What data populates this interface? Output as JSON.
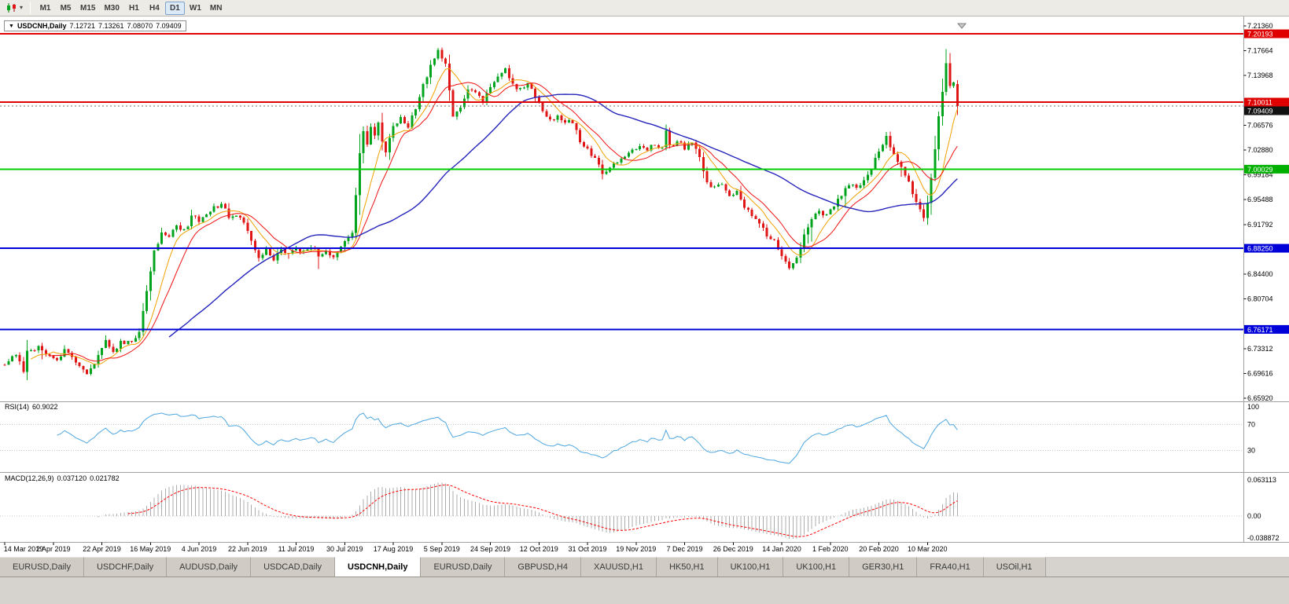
{
  "toolbar": {
    "timeframes": [
      "M1",
      "M5",
      "M15",
      "M30",
      "H1",
      "H4",
      "D1",
      "W1",
      "MN"
    ],
    "active_timeframe": "D1"
  },
  "title_box": {
    "dropdown": "▼",
    "symbol_period": "USDCNH,Daily",
    "open": "7.12721",
    "high": "7.13261",
    "low": "7.08070",
    "close": "7.09409"
  },
  "main_chart": {
    "hlines": [
      {
        "value": 7.20193,
        "color": "#DF0000",
        "width": 2
      },
      {
        "value": 7.10011,
        "color": "#DF0000",
        "width": 2
      },
      {
        "value": 7.00029,
        "color": "#00CC00",
        "width": 2
      },
      {
        "value": 6.8825,
        "color": "#0000D8",
        "width": 2
      },
      {
        "value": 6.76171,
        "color": "#0000D8",
        "width": 2
      }
    ],
    "current_price": {
      "value": 7.09409,
      "label": "7.09409"
    },
    "moving_averages": [
      {
        "period": 8,
        "color": "#F0A000",
        "width": 1
      },
      {
        "period": 13,
        "color": "#F01010",
        "width": 1
      },
      {
        "period": 45,
        "color": "#2424BC",
        "width": 1.4
      }
    ]
  },
  "price_axis": {
    "ticks": [
      {
        "value": 7.2136,
        "label": "7.21360"
      },
      {
        "value": 7.17664,
        "label": "7.17664"
      },
      {
        "value": 7.13968,
        "label": "7.13968"
      },
      {
        "value": 7.06576,
        "label": "7.06576"
      },
      {
        "value": 7.0288,
        "label": "7.02880"
      },
      {
        "value": 6.99184,
        "label": "6.99184"
      },
      {
        "value": 6.95488,
        "label": "6.95488"
      },
      {
        "value": 6.91792,
        "label": "6.91792"
      },
      {
        "value": 6.844,
        "label": "6.84400"
      },
      {
        "value": 6.80704,
        "label": "6.80704"
      },
      {
        "value": 6.73312,
        "label": "6.73312"
      },
      {
        "value": 6.69616,
        "label": "6.69616"
      },
      {
        "value": 6.6592,
        "label": "6.65920"
      }
    ],
    "badges": [
      {
        "value": 7.20193,
        "label": "7.20193",
        "bg": "#DF0000",
        "fg": "#FFFFFF"
      },
      {
        "value": 7.10011,
        "label": "7.10011",
        "bg": "#DF0000",
        "fg": "#FFFFFF"
      },
      {
        "value": 7.09409,
        "label": "7.09409",
        "bg": "#111111",
        "fg": "#FFFFFF"
      },
      {
        "value": 7.00029,
        "label": "7.00029",
        "bg": "#00B000",
        "fg": "#FFFFFF"
      },
      {
        "value": 6.8825,
        "label": "6.88250",
        "bg": "#0000D8",
        "fg": "#FFFFFF"
      },
      {
        "value": 6.76171,
        "label": "6.76171",
        "bg": "#0000D8",
        "fg": "#FFFFFF"
      }
    ]
  },
  "chart_data": {
    "type": "candlestick",
    "symbol": "USDCNH",
    "timeframe": "Daily",
    "candle_count": 256,
    "visible_price_range": [
      6.6592,
      7.2136
    ],
    "up_color": "#00A41C",
    "down_color": "#E01616",
    "last_candle_ohlc": {
      "o": 7.12721,
      "h": 7.13261,
      "l": 7.0807,
      "c": 7.09409
    },
    "close_anchors": [
      [
        0,
        6.712
      ],
      [
        3,
        6.722
      ],
      [
        5,
        6.7
      ],
      [
        6,
        6.728
      ],
      [
        9,
        6.735
      ],
      [
        12,
        6.722
      ],
      [
        14,
        6.718
      ],
      [
        16,
        6.73
      ],
      [
        19,
        6.712
      ],
      [
        22,
        6.698
      ],
      [
        24,
        6.712
      ],
      [
        27,
        6.748
      ],
      [
        29,
        6.73
      ],
      [
        31,
        6.742
      ],
      [
        34,
        6.742
      ],
      [
        36,
        6.758
      ],
      [
        38,
        6.82
      ],
      [
        40,
        6.878
      ],
      [
        42,
        6.905
      ],
      [
        44,
        6.898
      ],
      [
        46,
        6.916
      ],
      [
        48,
        6.908
      ],
      [
        50,
        6.928
      ],
      [
        52,
        6.925
      ],
      [
        54,
        6.932
      ],
      [
        56,
        6.944
      ],
      [
        58,
        6.948
      ],
      [
        60,
        6.93
      ],
      [
        62,
        6.932
      ],
      [
        64,
        6.918
      ],
      [
        66,
        6.896
      ],
      [
        68,
        6.868
      ],
      [
        70,
        6.882
      ],
      [
        72,
        6.864
      ],
      [
        74,
        6.88
      ],
      [
        76,
        6.874
      ],
      [
        78,
        6.88
      ],
      [
        80,
        6.878
      ],
      [
        82,
        6.886
      ],
      [
        84,
        6.874
      ],
      [
        86,
        6.88
      ],
      [
        88,
        6.87
      ],
      [
        90,
        6.884
      ],
      [
        92,
        6.896
      ],
      [
        93,
        6.905
      ],
      [
        94,
        6.965
      ],
      [
        95,
        7.022
      ],
      [
        96,
        7.058
      ],
      [
        97,
        7.035
      ],
      [
        98,
        7.06
      ],
      [
        99,
        7.048
      ],
      [
        100,
        7.066
      ],
      [
        101,
        7.042
      ],
      [
        102,
        7.028
      ],
      [
        103,
        7.048
      ],
      [
        104,
        7.062
      ],
      [
        106,
        7.078
      ],
      [
        108,
        7.062
      ],
      [
        110,
        7.092
      ],
      [
        112,
        7.125
      ],
      [
        114,
        7.155
      ],
      [
        116,
        7.175
      ],
      [
        118,
        7.158
      ],
      [
        119,
        7.12
      ],
      [
        120,
        7.082
      ],
      [
        122,
        7.09
      ],
      [
        124,
        7.122
      ],
      [
        126,
        7.112
      ],
      [
        128,
        7.102
      ],
      [
        130,
        7.122
      ],
      [
        132,
        7.138
      ],
      [
        134,
        7.148
      ],
      [
        136,
        7.128
      ],
      [
        138,
        7.118
      ],
      [
        140,
        7.128
      ],
      [
        142,
        7.108
      ],
      [
        144,
        7.088
      ],
      [
        146,
        7.072
      ],
      [
        148,
        7.078
      ],
      [
        150,
        7.068
      ],
      [
        152,
        7.072
      ],
      [
        154,
        7.042
      ],
      [
        156,
        7.028
      ],
      [
        158,
        7.018
      ],
      [
        160,
        6.992
      ],
      [
        162,
        7.002
      ],
      [
        164,
        7.012
      ],
      [
        166,
        7.022
      ],
      [
        168,
        7.028
      ],
      [
        170,
        7.038
      ],
      [
        172,
        7.028
      ],
      [
        174,
        7.038
      ],
      [
        176,
        7.032
      ],
      [
        177,
        7.058
      ],
      [
        178,
        7.035
      ],
      [
        180,
        7.042
      ],
      [
        182,
        7.032
      ],
      [
        184,
        7.038
      ],
      [
        186,
        7.018
      ],
      [
        188,
        6.982
      ],
      [
        190,
        6.972
      ],
      [
        192,
        6.976
      ],
      [
        194,
        6.962
      ],
      [
        196,
        6.966
      ],
      [
        198,
        6.944
      ],
      [
        200,
        6.932
      ],
      [
        202,
        6.922
      ],
      [
        204,
        6.902
      ],
      [
        206,
        6.892
      ],
      [
        208,
        6.872
      ],
      [
        210,
        6.852
      ],
      [
        212,
        6.872
      ],
      [
        214,
        6.902
      ],
      [
        216,
        6.928
      ],
      [
        218,
        6.938
      ],
      [
        220,
        6.93
      ],
      [
        222,
        6.948
      ],
      [
        224,
        6.962
      ],
      [
        226,
        6.978
      ],
      [
        228,
        6.972
      ],
      [
        230,
        6.982
      ],
      [
        232,
        7.002
      ],
      [
        234,
        7.028
      ],
      [
        236,
        7.048
      ],
      [
        238,
        7.022
      ],
      [
        240,
        7.002
      ],
      [
        242,
        6.982
      ],
      [
        244,
        6.952
      ],
      [
        246,
        6.928
      ],
      [
        247,
        6.952
      ],
      [
        248,
        6.988
      ],
      [
        249,
        7.028
      ],
      [
        250,
        7.078
      ],
      [
        251,
        7.118
      ],
      [
        252,
        7.158
      ],
      [
        253,
        7.122
      ],
      [
        254,
        7.128
      ],
      [
        255,
        7.094
      ]
    ],
    "date_labels": [
      {
        "index": 0,
        "label": "14 Mar 2019"
      },
      {
        "index": 13,
        "label": "2 Apr 2019"
      },
      {
        "index": 26,
        "label": "22 Apr 2019"
      },
      {
        "index": 39,
        "label": "16 May 2019"
      },
      {
        "index": 52,
        "label": "4 Jun 2019"
      },
      {
        "index": 65,
        "label": "22 Jun 2019"
      },
      {
        "index": 78,
        "label": "11 Jul 2019"
      },
      {
        "index": 91,
        "label": "30 Jul 2019"
      },
      {
        "index": 104,
        "label": "17 Aug 2019"
      },
      {
        "index": 117,
        "label": "5 Sep 2019"
      },
      {
        "index": 130,
        "label": "24 Sep 2019"
      },
      {
        "index": 143,
        "label": "12 Oct 2019"
      },
      {
        "index": 156,
        "label": "31 Oct 2019"
      },
      {
        "index": 169,
        "label": "19 Nov 2019"
      },
      {
        "index": 182,
        "label": "7 Dec 2019"
      },
      {
        "index": 195,
        "label": "26 Dec 2019"
      },
      {
        "index": 208,
        "label": "14 Jan 2020"
      },
      {
        "index": 221,
        "label": "1 Feb 2020"
      },
      {
        "index": 234,
        "label": "20 Feb 2020"
      },
      {
        "index": 247,
        "label": "10 Mar 2020"
      }
    ]
  },
  "rsi_panel": {
    "label": "RSI(14)",
    "value": "60.9022",
    "period": 14,
    "line_color": "#4DA6E0",
    "levels": [
      {
        "value": 100,
        "label": "100",
        "dotted": false
      },
      {
        "value": 70,
        "label": "70",
        "dotted": true
      },
      {
        "value": 30,
        "label": "30",
        "dotted": true
      }
    ]
  },
  "macd_panel": {
    "label": "MACD(12,26,9)",
    "macd_value": "0.037120",
    "signal_value": "0.021782",
    "fast": 12,
    "slow": 26,
    "signal_period": 9,
    "hist_color": "#ACACAC",
    "signal_color": "#FF0000",
    "axis_labels": [
      {
        "value": 0.063113,
        "label": "0.063113"
      },
      {
        "value": 0.0,
        "label": "0.00"
      },
      {
        "value": -0.038872,
        "label": "-0.038872"
      }
    ]
  },
  "tabs": {
    "items": [
      {
        "label": "EURUSD,Daily",
        "active": false
      },
      {
        "label": "USDCHF,Daily",
        "active": false
      },
      {
        "label": "AUDUSD,Daily",
        "active": false
      },
      {
        "label": "USDCAD,Daily",
        "active": false
      },
      {
        "label": "USDCNH,Daily",
        "active": true
      },
      {
        "label": "EURUSD,Daily",
        "active": false
      },
      {
        "label": "GBPUSD,H4",
        "active": false
      },
      {
        "label": "XAUUSD,H1",
        "active": false
      },
      {
        "label": "HK50,H1",
        "active": false
      },
      {
        "label": "UK100,H1",
        "active": false
      },
      {
        "label": "UK100,H1",
        "active": false
      },
      {
        "label": "GER30,H1",
        "active": false
      },
      {
        "label": "FRA40,H1",
        "active": false
      },
      {
        "label": "USOil,H1",
        "active": false
      }
    ]
  }
}
